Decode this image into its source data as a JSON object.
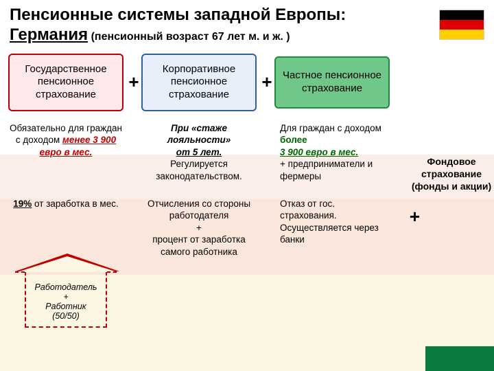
{
  "title": {
    "line1": "Пенсионные системы западной Европы:",
    "line2_bold": "Германия",
    "line2_rest": " (пенсионный возраст 67 лет м. и ж. )"
  },
  "flag": {
    "top": "#000000",
    "mid": "#dd0000",
    "bot": "#ffce00"
  },
  "plus": "+",
  "pillars": {
    "state": {
      "label": "Государственное пенсионное страхование",
      "border": "#c00000",
      "bg": "#fde9ea"
    },
    "corp": {
      "label": "Корпоративное пенсионное страхование",
      "border": "#2e5fa3",
      "bg": "#e8effa"
    },
    "priv": {
      "label": "Частное пенсионное страхование",
      "border": "#1e8a3b",
      "bg": "#70c78a"
    }
  },
  "row2": {
    "state_a": "Обязательно для граждан с доходом ",
    "state_b": "менее 3 900 евро в мес.",
    "corp_a": "При «стаже лояльности»",
    "corp_b": "от 5 лет.",
    "corp_c": "Регулируется законодательством.",
    "priv_a": "Для граждан с доходом ",
    "priv_b": "более",
    "priv_c": "3 900 евро в мес.",
    "priv_d": "+ предприниматели и фермеры"
  },
  "row3": {
    "state_a": "19%",
    "state_b": " от заработка в мес.",
    "corp": "Отчисления со стороны работодателя\n+\nпроцент от заработка самого работника",
    "priv": "Отказ от гос. страхования. Осуществляется через банки"
  },
  "arrow": {
    "l1": "Работодатель",
    "l2": "+",
    "l3": "Работник",
    "l4": "(50/50)"
  },
  "side": {
    "text": "Фондовое страхование (фонды и акции)"
  }
}
